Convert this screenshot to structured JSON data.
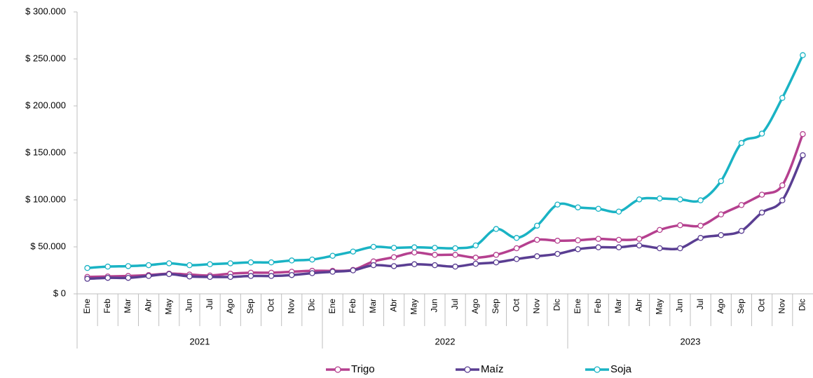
{
  "chart_data": {
    "type": "line",
    "categories": [
      "Ene",
      "Feb",
      "Mar",
      "Abr",
      "May",
      "Jun",
      "Jul",
      "Ago",
      "Sep",
      "Oct",
      "Nov",
      "Dic",
      "Ene",
      "Feb",
      "Mar",
      "Abr",
      "May",
      "Jun",
      "Jul",
      "Ago",
      "Sep",
      "Oct",
      "Nov",
      "Dic",
      "Ene",
      "Feb",
      "Mar",
      "Abr",
      "May",
      "Jun",
      "Jul",
      "Ago",
      "Sep",
      "Oct",
      "Nov",
      "Dic"
    ],
    "groups": [
      "2021",
      "2022",
      "2023"
    ],
    "series": [
      {
        "name": "Trigo",
        "color": "#b5408f",
        "values": [
          18000,
          18500,
          19000,
          20000,
          21500,
          20500,
          19500,
          21500,
          22500,
          22500,
          23500,
          24500,
          24500,
          25500,
          34500,
          39000,
          44000,
          41500,
          41500,
          38500,
          41500,
          48500,
          57500,
          56500,
          57000,
          58500,
          57500,
          58500,
          68000,
          73000,
          72500,
          84500,
          94500,
          105500,
          115500,
          170000
        ]
      },
      {
        "name": "Maíz",
        "color": "#5a3e92",
        "values": [
          16000,
          17000,
          17000,
          19000,
          21000,
          18500,
          18000,
          18000,
          19000,
          19000,
          20000,
          22000,
          23500,
          25000,
          30500,
          29500,
          31500,
          30500,
          29000,
          32000,
          33500,
          37000,
          40000,
          42500,
          47500,
          49500,
          49500,
          51500,
          48500,
          48500,
          59500,
          62500,
          67000,
          86500,
          99500,
          147500
        ]
      },
      {
        "name": "Soja",
        "color": "#1ab3c4",
        "values": [
          27500,
          29000,
          29500,
          30500,
          32500,
          30500,
          31500,
          32500,
          33500,
          33500,
          35500,
          36500,
          40500,
          45000,
          50000,
          49000,
          49500,
          49000,
          48500,
          51500,
          69000,
          59500,
          72500,
          95000,
          92000,
          90500,
          87500,
          100500,
          101500,
          100500,
          99500,
          120000,
          160500,
          170500,
          208500,
          254000
        ]
      }
    ],
    "ylim": [
      0,
      300000
    ],
    "yticks": [
      {
        "value": 0,
        "label": "$ 0"
      },
      {
        "value": 50000,
        "label": "$ 50.000"
      },
      {
        "value": 100000,
        "label": "$ 100.000"
      },
      {
        "value": 150000,
        "label": "$ 150.000"
      },
      {
        "value": 200000,
        "label": "$ 200.000"
      },
      {
        "value": 250000,
        "label": "$ 250.000"
      },
      {
        "value": 300000,
        "label": "$ 300.000"
      }
    ],
    "legend": "bottom"
  }
}
